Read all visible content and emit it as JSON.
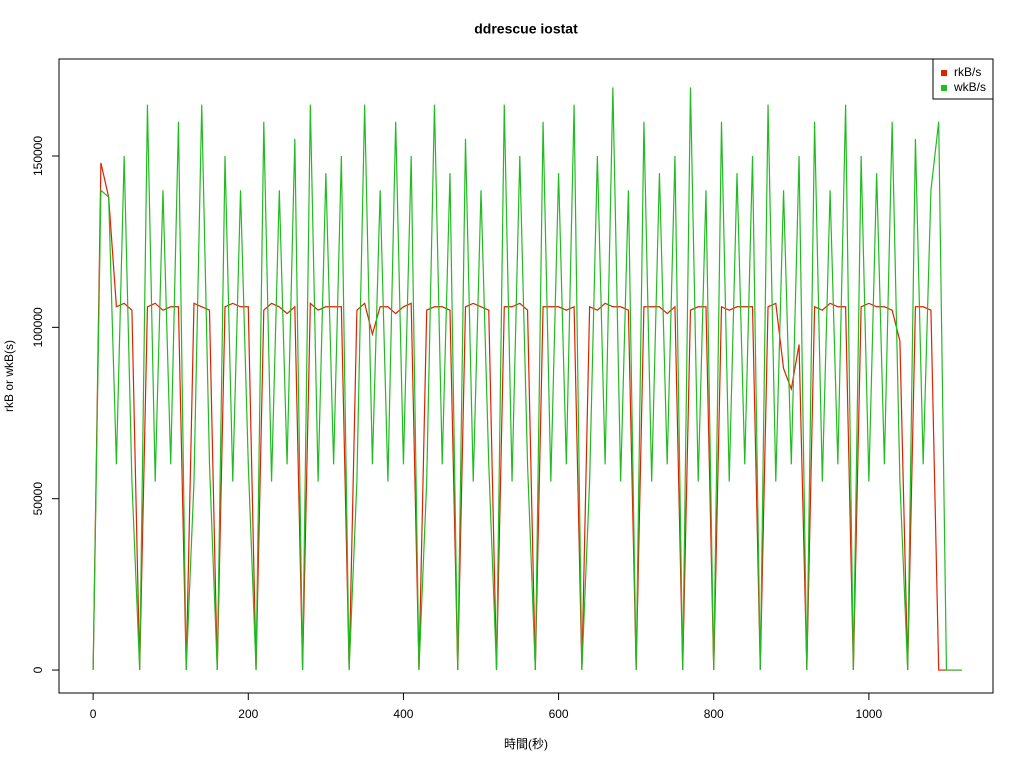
{
  "chart_data": {
    "type": "line",
    "title": "ddrescue iostat",
    "x_label": "時間(秒)",
    "y_label": "rkB or wkB(s)",
    "x": [
      0,
      10,
      20,
      30,
      40,
      50,
      60,
      70,
      80,
      90,
      100,
      110,
      120,
      130,
      140,
      150,
      160,
      170,
      180,
      190,
      200,
      210,
      220,
      230,
      240,
      250,
      260,
      270,
      280,
      290,
      300,
      310,
      320,
      330,
      340,
      350,
      360,
      370,
      380,
      390,
      400,
      410,
      420,
      430,
      440,
      450,
      460,
      470,
      480,
      490,
      500,
      510,
      520,
      530,
      540,
      550,
      560,
      570,
      580,
      590,
      600,
      610,
      620,
      630,
      640,
      650,
      660,
      670,
      680,
      690,
      700,
      710,
      720,
      730,
      740,
      750,
      760,
      770,
      780,
      790,
      800,
      810,
      820,
      830,
      840,
      850,
      860,
      870,
      880,
      890,
      900,
      910,
      920,
      930,
      940,
      950,
      960,
      970,
      980,
      990,
      1000,
      1010,
      1020,
      1030,
      1040,
      1050,
      1060,
      1070,
      1080,
      1090,
      1100,
      1110,
      1120
    ],
    "series": [
      {
        "name": "rkB/s",
        "color": "#dd2200",
        "values": [
          0,
          148000,
          138000,
          106000,
          107000,
          105000,
          0,
          106000,
          107000,
          105000,
          106000,
          106000,
          0,
          107000,
          106000,
          105000,
          0,
          106000,
          107000,
          106000,
          106000,
          0,
          105000,
          107000,
          106000,
          104000,
          106000,
          0,
          107000,
          105000,
          106000,
          106000,
          106000,
          0,
          105000,
          107000,
          98000,
          106000,
          106000,
          104000,
          106000,
          107000,
          0,
          105000,
          106000,
          106000,
          105000,
          0,
          106000,
          107000,
          106000,
          105000,
          0,
          106000,
          106000,
          107000,
          105000,
          0,
          106000,
          106000,
          106000,
          105000,
          106000,
          0,
          106000,
          105000,
          107000,
          106000,
          106000,
          105000,
          0,
          106000,
          106000,
          106000,
          104000,
          106000,
          0,
          105000,
          106000,
          106000,
          0,
          106000,
          105000,
          106000,
          106000,
          106000,
          0,
          106000,
          107000,
          88000,
          82000,
          95000,
          0,
          106000,
          105000,
          107000,
          106000,
          106000,
          0,
          106000,
          107000,
          106000,
          106000,
          105000,
          96000,
          0,
          106000,
          106000,
          105000,
          0,
          0,
          0,
          0
        ]
      },
      {
        "name": "wkB/s",
        "color": "#22bb22",
        "values": [
          0,
          140000,
          138000,
          60000,
          150000,
          55000,
          0,
          165000,
          55000,
          140000,
          60000,
          160000,
          0,
          55000,
          165000,
          60000,
          0,
          150000,
          55000,
          140000,
          60000,
          0,
          160000,
          55000,
          140000,
          60000,
          155000,
          0,
          165000,
          55000,
          145000,
          60000,
          150000,
          0,
          55000,
          165000,
          60000,
          140000,
          55000,
          160000,
          60000,
          150000,
          0,
          55000,
          165000,
          60000,
          145000,
          0,
          155000,
          55000,
          140000,
          60000,
          0,
          165000,
          55000,
          150000,
          60000,
          0,
          160000,
          55000,
          145000,
          60000,
          165000,
          0,
          55000,
          150000,
          60000,
          170000,
          55000,
          140000,
          0,
          160000,
          55000,
          145000,
          60000,
          150000,
          0,
          170000,
          55000,
          140000,
          0,
          160000,
          55000,
          145000,
          60000,
          150000,
          0,
          165000,
          55000,
          140000,
          60000,
          150000,
          0,
          160000,
          55000,
          140000,
          60000,
          165000,
          0,
          150000,
          55000,
          145000,
          60000,
          160000,
          55000,
          0,
          155000,
          60000,
          140000,
          160000,
          0,
          0,
          0
        ]
      }
    ],
    "xlim": [
      -44,
      1160
    ],
    "ylim": [
      -6700,
      178300
    ],
    "xticks": [
      0,
      200,
      400,
      600,
      800,
      1000
    ],
    "yticks": [
      0,
      50000,
      100000,
      150000
    ],
    "legend": "top-right"
  }
}
